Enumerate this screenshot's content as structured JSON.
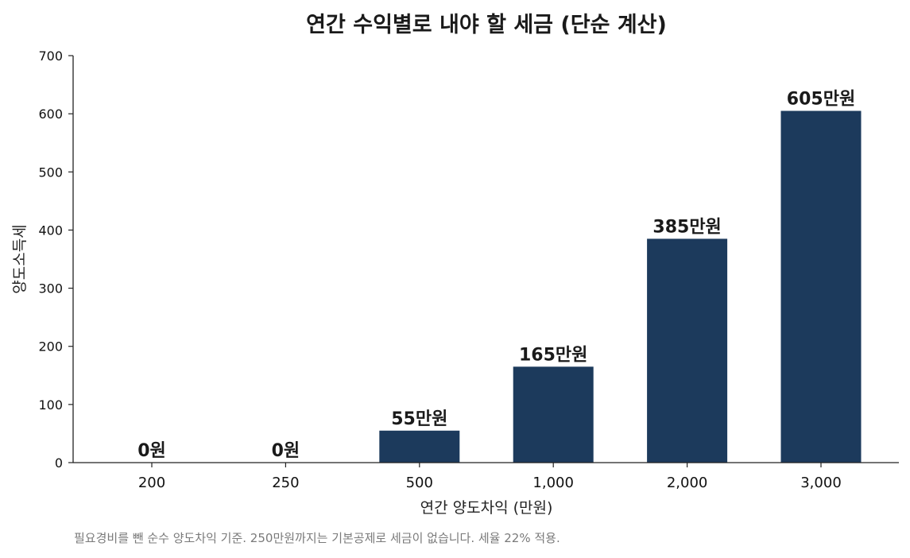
{
  "chart_data": {
    "type": "bar",
    "title": "연간 수익별로 내야 할 세금 (단순 계산)",
    "xlabel": "연간 양도차익 (만원)",
    "ylabel": "양도소득세",
    "categories": [
      "200",
      "250",
      "500",
      "1,000",
      "2,000",
      "3,000"
    ],
    "values": [
      0,
      0,
      55,
      165,
      385,
      605
    ],
    "data_labels": [
      "0원",
      "0원",
      "55만원",
      "165만원",
      "385만원",
      "605만원"
    ],
    "ylim": [
      0,
      700
    ],
    "yticks": [
      "0",
      "100",
      "200",
      "300",
      "400",
      "500",
      "600",
      "700"
    ],
    "grid": false,
    "bar_color": "#1c3a5c",
    "footnote": "필요경비를 뺀 순수 양도차익 기준. 250만원까지는 기본공제로 세금이 없습니다. 세율 22% 적용."
  }
}
